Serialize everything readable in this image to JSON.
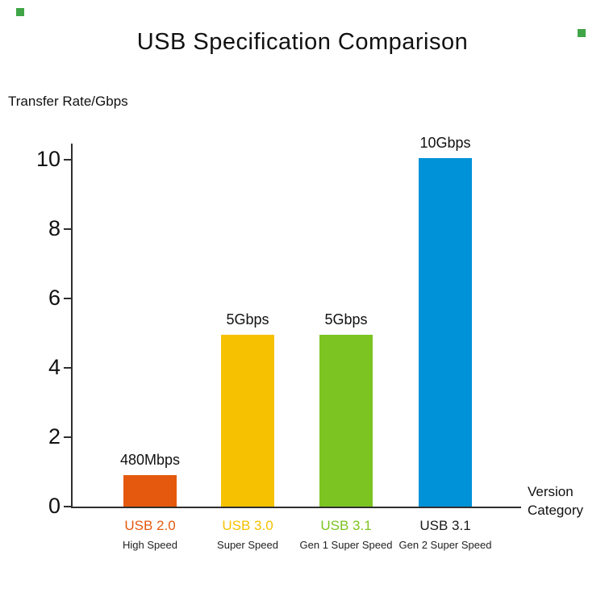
{
  "title": "USB Specification Comparison",
  "chart_data": {
    "type": "bar",
    "title": "USB Specification Comparison",
    "ylabel": "Transfer Rate/Gbps",
    "xlabel": "Version Category",
    "categories": [
      "USB 2.0",
      "USB 3.0",
      "USB 3.1",
      "USB 3.1"
    ],
    "subcategories": [
      "High Speed",
      "Super Speed",
      "Gen 1 Super Speed",
      "Gen 2 Super Speed"
    ],
    "values_gbps": [
      0.48,
      5,
      5,
      10
    ],
    "value_labels": [
      "480Mbps",
      "5Gbps",
      "5Gbps",
      "10Gbps"
    ],
    "bar_display_heights_gbps": [
      0.9,
      4.95,
      4.95,
      10.05
    ],
    "bar_colors": [
      "#E4590E",
      "#F5C100",
      "#7CC422",
      "#0092D8"
    ],
    "category_label_colors": [
      "#E4590E",
      "#F5C100",
      "#7CC422",
      "#1A1A1A"
    ],
    "yticks": [
      0,
      2,
      4,
      6,
      8,
      10
    ],
    "ylim": [
      0,
      10.5
    ],
    "grid": false,
    "legend": false
  },
  "axis": {
    "y_label": "Transfer Rate/Gbps",
    "x_label_line1": "Version",
    "x_label_line2": "Category"
  },
  "decorations": {
    "mark_color": "#3FA546"
  }
}
